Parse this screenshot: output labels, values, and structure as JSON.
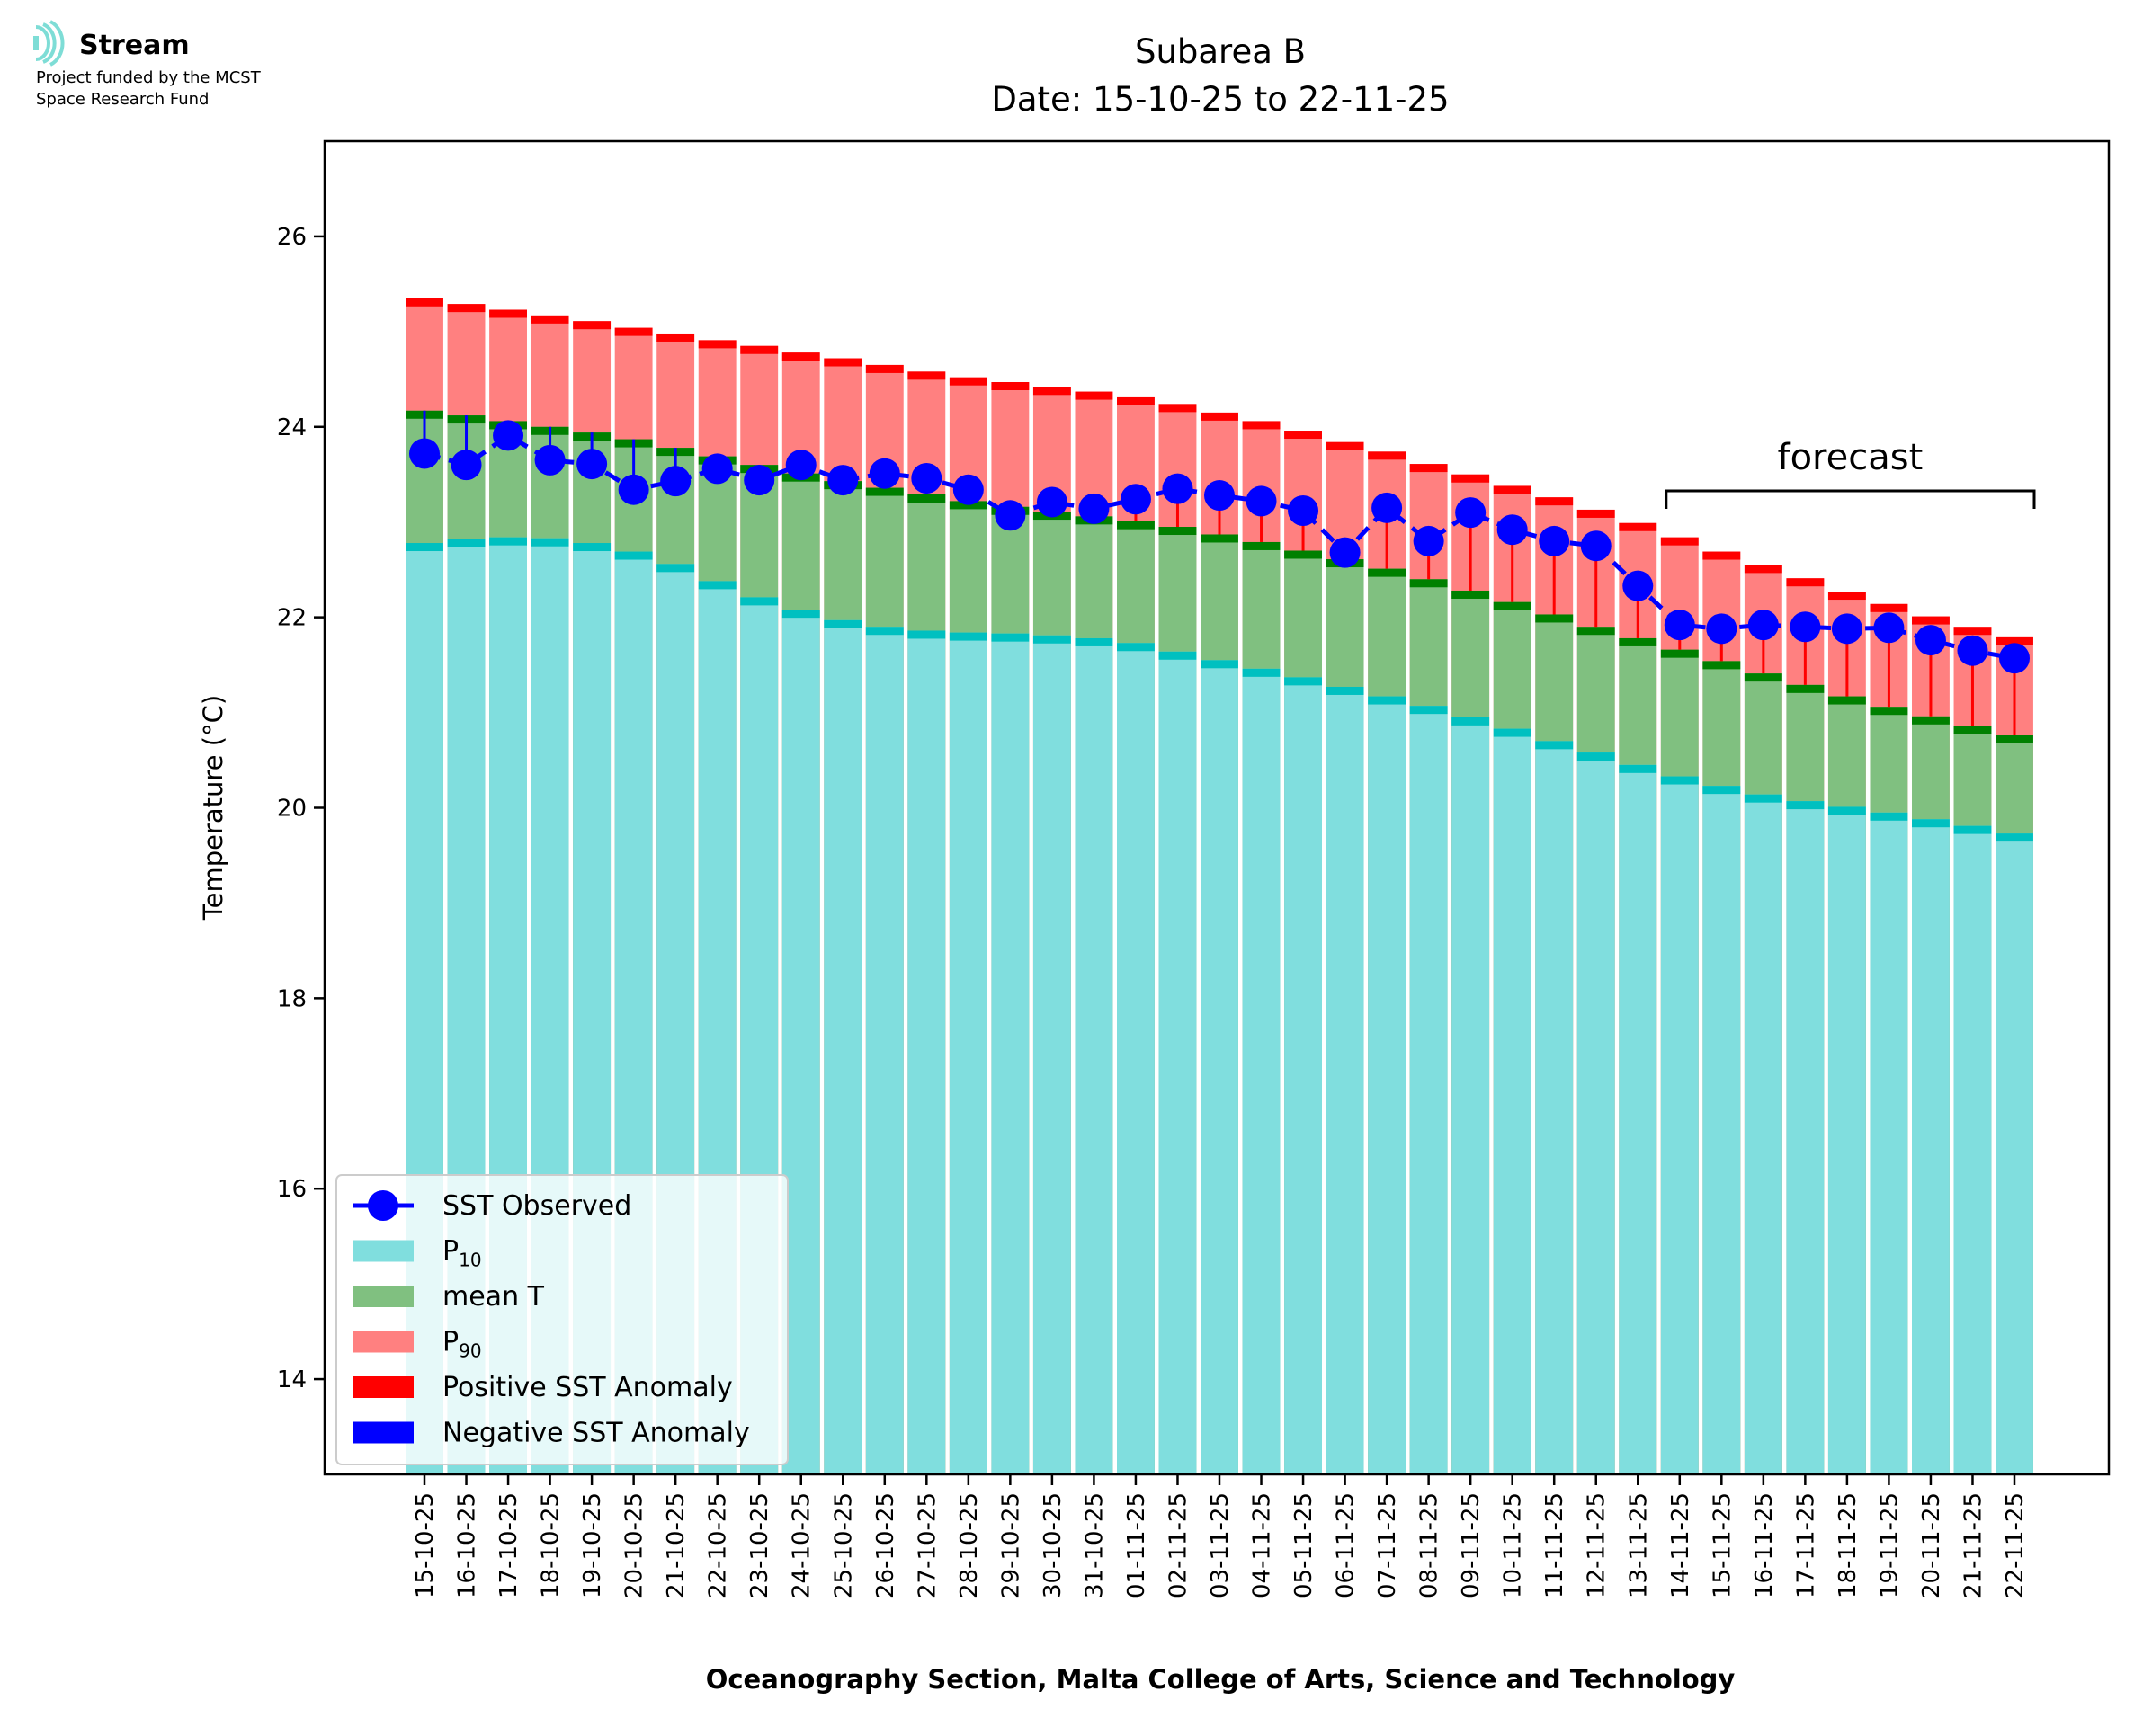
{
  "logo": {
    "name": "Stream",
    "line1": "Project funded by the MCST",
    "line2": "Space Research Fund"
  },
  "chart_data": {
    "type": "bar",
    "title": "Subarea B",
    "subtitle": "Date: 15-10-25 to 22-11-25",
    "xlabel": "Oceanography Section, Malta College of Arts, Science and Technology",
    "ylabel": "Temperature (°C)",
    "ylim": [
      13.0,
      27.0
    ],
    "yticks": [
      14,
      16,
      18,
      20,
      22,
      24,
      26
    ],
    "categories": [
      "15-10-25",
      "16-10-25",
      "17-10-25",
      "18-10-25",
      "19-10-25",
      "20-10-25",
      "21-10-25",
      "22-10-25",
      "23-10-25",
      "24-10-25",
      "25-10-25",
      "26-10-25",
      "27-10-25",
      "28-10-25",
      "29-10-25",
      "30-10-25",
      "31-10-25",
      "01-11-25",
      "02-11-25",
      "03-11-25",
      "04-11-25",
      "05-11-25",
      "06-11-25",
      "07-11-25",
      "08-11-25",
      "09-11-25",
      "10-11-25",
      "11-11-25",
      "12-11-25",
      "13-11-25",
      "14-11-25",
      "15-11-25",
      "16-11-25",
      "17-11-25",
      "18-11-25",
      "19-11-25",
      "20-11-25",
      "21-11-25",
      "22-11-25"
    ],
    "series": [
      {
        "name": "P10",
        "color": "#80DEDE",
        "values": [
          22.78,
          22.82,
          22.84,
          22.83,
          22.78,
          22.69,
          22.56,
          22.38,
          22.21,
          22.08,
          21.97,
          21.9,
          21.86,
          21.84,
          21.83,
          21.81,
          21.78,
          21.73,
          21.64,
          21.55,
          21.46,
          21.37,
          21.27,
          21.17,
          21.07,
          20.95,
          20.83,
          20.7,
          20.58,
          20.45,
          20.33,
          20.23,
          20.14,
          20.07,
          20.01,
          19.95,
          19.88,
          19.81,
          19.73
        ]
      },
      {
        "name": "mean T",
        "color": "#80C080",
        "values": [
          24.17,
          24.12,
          24.06,
          24.0,
          23.94,
          23.87,
          23.78,
          23.69,
          23.6,
          23.51,
          23.43,
          23.36,
          23.29,
          23.22,
          23.16,
          23.11,
          23.06,
          23.01,
          22.95,
          22.87,
          22.79,
          22.7,
          22.61,
          22.51,
          22.4,
          22.28,
          22.16,
          22.03,
          21.9,
          21.78,
          21.66,
          21.54,
          21.41,
          21.29,
          21.17,
          21.06,
          20.96,
          20.86,
          20.76
        ]
      },
      {
        "name": "P90",
        "color": "#FF8080",
        "values": [
          25.35,
          25.29,
          25.23,
          25.17,
          25.11,
          25.04,
          24.98,
          24.91,
          24.85,
          24.78,
          24.72,
          24.65,
          24.58,
          24.52,
          24.47,
          24.42,
          24.37,
          24.31,
          24.24,
          24.15,
          24.06,
          23.96,
          23.84,
          23.74,
          23.61,
          23.5,
          23.38,
          23.26,
          23.13,
          22.99,
          22.84,
          22.69,
          22.55,
          22.41,
          22.27,
          22.14,
          22.01,
          21.9,
          21.79
        ]
      },
      {
        "name": "SST Observed",
        "color": "#0000FF",
        "values": [
          23.72,
          23.6,
          23.91,
          23.65,
          23.61,
          23.34,
          23.43,
          23.56,
          23.44,
          23.6,
          23.44,
          23.51,
          23.46,
          23.34,
          23.07,
          23.21,
          23.14,
          23.24,
          23.35,
          23.28,
          23.22,
          23.12,
          22.68,
          23.15,
          22.8,
          23.1,
          22.92,
          22.8,
          22.75,
          22.33,
          21.92,
          21.88,
          21.92,
          21.9,
          21.88,
          21.89,
          21.76,
          21.65,
          21.57
        ]
      }
    ],
    "forecast_label": "forecast",
    "forecast_start": "14-11-25",
    "forecast_end": "22-11-25",
    "legend": {
      "position": "lower-left",
      "entries": [
        {
          "label": "SST Observed",
          "color": "#0000FF",
          "kind": "line-marker"
        },
        {
          "label": "P",
          "sub": "10",
          "color": "#80DEDE",
          "kind": "patch"
        },
        {
          "label": "mean T",
          "color": "#80C080",
          "kind": "patch"
        },
        {
          "label": "P",
          "sub": "90",
          "color": "#FF8080",
          "kind": "patch"
        },
        {
          "label": "Positive SST Anomaly",
          "color": "#FF0000",
          "kind": "patch"
        },
        {
          "label": "Negative SST Anomaly",
          "color": "#0000FF",
          "kind": "patch"
        }
      ]
    },
    "cap_colors": {
      "p10": "#00C0C0",
      "mean": "#008000",
      "p90": "#FF0000"
    },
    "anomaly_colors": {
      "positive": "#FF0000",
      "negative": "#0000FF"
    },
    "grid": false
  }
}
